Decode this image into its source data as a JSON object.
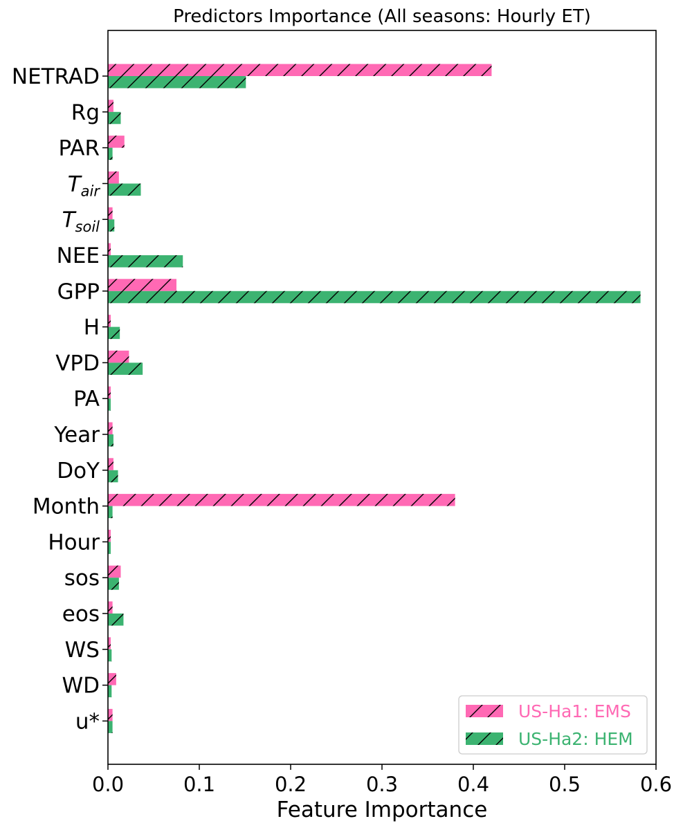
{
  "chart_data": {
    "type": "bar",
    "orientation": "horizontal",
    "title": "Predictors Importance (All seasons: Hourly ET)",
    "xlabel": "Feature Importance",
    "ylabel": "",
    "xlim": [
      0,
      0.6
    ],
    "xticks": [
      "0.0",
      "0.1",
      "0.2",
      "0.3",
      "0.4",
      "0.5",
      "0.6"
    ],
    "grid": false,
    "legend_position": "lower-right",
    "categories": [
      {
        "label": "NETRAD",
        "sub": ""
      },
      {
        "label": "Rg",
        "sub": ""
      },
      {
        "label": "PAR",
        "sub": ""
      },
      {
        "label": "T",
        "sub": "air"
      },
      {
        "label": "T",
        "sub": "soil"
      },
      {
        "label": "NEE",
        "sub": ""
      },
      {
        "label": "GPP",
        "sub": ""
      },
      {
        "label": "H",
        "sub": ""
      },
      {
        "label": "VPD",
        "sub": ""
      },
      {
        "label": "PA",
        "sub": ""
      },
      {
        "label": "Year",
        "sub": ""
      },
      {
        "label": "DoY",
        "sub": ""
      },
      {
        "label": "Month",
        "sub": ""
      },
      {
        "label": "Hour",
        "sub": ""
      },
      {
        "label": "sos",
        "sub": ""
      },
      {
        "label": "eos",
        "sub": ""
      },
      {
        "label": "WS",
        "sub": ""
      },
      {
        "label": "WD",
        "sub": ""
      },
      {
        "label": "u*",
        "sub": ""
      }
    ],
    "series": [
      {
        "name": "US-Ha1: EMS",
        "color": "#ff69b4",
        "hatch": "/",
        "values": [
          0.42,
          0.006,
          0.018,
          0.012,
          0.005,
          0.003,
          0.075,
          0.003,
          0.023,
          0.003,
          0.005,
          0.006,
          0.38,
          0.003,
          0.014,
          0.005,
          0.003,
          0.009,
          0.005
        ]
      },
      {
        "name": "US-Ha2: HEM",
        "color": "#3cb371",
        "hatch": "/",
        "values": [
          0.151,
          0.014,
          0.005,
          0.036,
          0.007,
          0.082,
          0.583,
          0.013,
          0.038,
          0.003,
          0.006,
          0.011,
          0.005,
          0.003,
          0.012,
          0.017,
          0.004,
          0.004,
          0.005
        ]
      }
    ]
  }
}
